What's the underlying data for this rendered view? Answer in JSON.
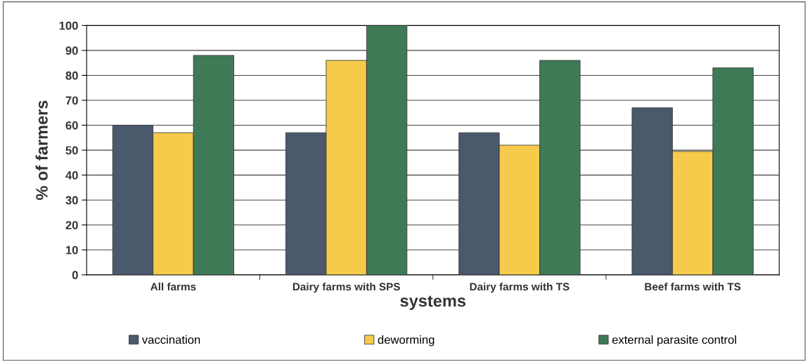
{
  "chart_data": {
    "type": "bar",
    "xlabel": "systems",
    "ylabel": "% of farmers",
    "categories": [
      "All farms",
      "Dairy farms with SPS",
      "Dairy farms with TS",
      "Beef farms with TS"
    ],
    "series": [
      {
        "name": "vaccination",
        "color": "#4a5a6c",
        "values": [
          60,
          57,
          57,
          67
        ]
      },
      {
        "name": "deworming",
        "color": "#f6cb4c",
        "values": [
          57,
          86,
          52,
          49.5
        ]
      },
      {
        "name": "external parasite control",
        "color": "#3f7a56",
        "values": [
          88,
          100,
          86,
          83
        ]
      }
    ],
    "ylim": [
      0,
      100
    ],
    "yticks": [
      0,
      10,
      20,
      30,
      40,
      50,
      60,
      70,
      80,
      90,
      100
    ],
    "grid": "y",
    "legend": "bottom"
  }
}
